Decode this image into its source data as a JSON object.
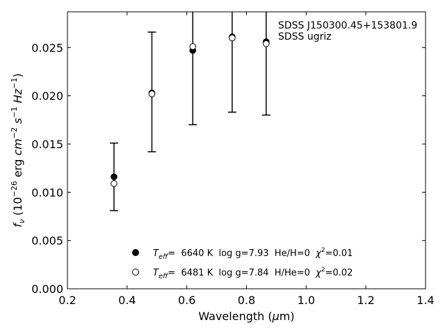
{
  "chart_data": {
    "type": "scatter",
    "title": "",
    "xlabel_prefix": "Wavelength (",
    "xlabel_unit_symbol": "μ",
    "xlabel_unit_rest": "m)",
    "ylabel_f": "f",
    "ylabel_sub": "ν",
    "ylabel_open": " (10",
    "ylabel_exp1": "−26",
    "ylabel_erg": " erg ",
    "ylabel_cm": "cm",
    "ylabel_exp2": "−2",
    "ylabel_s": " s",
    "ylabel_exp3": "−1",
    "ylabel_hz": " Hz",
    "ylabel_exp4": "−1",
    "ylabel_close": ")",
    "xlim": [
      0.2,
      1.4
    ],
    "ylim": [
      0.0,
      0.0287
    ],
    "x_ticks": [
      "0.2",
      "0.4",
      "0.6",
      "0.8",
      "1.0",
      "1.2",
      "1.4"
    ],
    "x_tick_values": [
      0.2,
      0.4,
      0.6,
      0.8,
      1.0,
      1.2,
      1.4
    ],
    "y_ticks": [
      "0.000",
      "0.005",
      "0.010",
      "0.015",
      "0.020",
      "0.025"
    ],
    "y_tick_values": [
      0.0,
      0.005,
      0.01,
      0.015,
      0.02,
      0.025
    ],
    "annotation_line1": "SDSS J150300.45+153801.9",
    "annotation_line2": "SDSS ugriz",
    "observed": {
      "x": [
        0.356,
        0.483,
        0.62,
        0.752,
        0.866
      ],
      "y": [
        0.0116,
        0.0204,
        0.0247,
        0.0261,
        0.0256
      ],
      "err": [
        0.0035,
        0.0062,
        0.0077,
        0.0078,
        0.0076
      ]
    },
    "series": [
      {
        "marker": "filled",
        "t_label": "T",
        "t_sub": "eff",
        "text_a": "=  6640 K  log g=7.93  He/H=0  ",
        "chi": "χ",
        "chi_exp": "2",
        "text_b": "=0.01",
        "x": [
          0.356,
          0.483,
          0.62,
          0.752,
          0.866
        ],
        "y": [
          0.0116,
          0.0203,
          0.0247,
          0.0261,
          0.0256
        ]
      },
      {
        "marker": "open",
        "t_label": "T",
        "t_sub": "eff",
        "text_a": "=  6481 K  log g=7.84  H/He=0  ",
        "chi": "χ",
        "chi_exp": "2",
        "text_b": "=0.02",
        "x": [
          0.356,
          0.483,
          0.62,
          0.752,
          0.866
        ],
        "y": [
          0.0109,
          0.0202,
          0.0251,
          0.026,
          0.0254
        ]
      }
    ],
    "grid": false,
    "legend_position": "lower-center"
  }
}
